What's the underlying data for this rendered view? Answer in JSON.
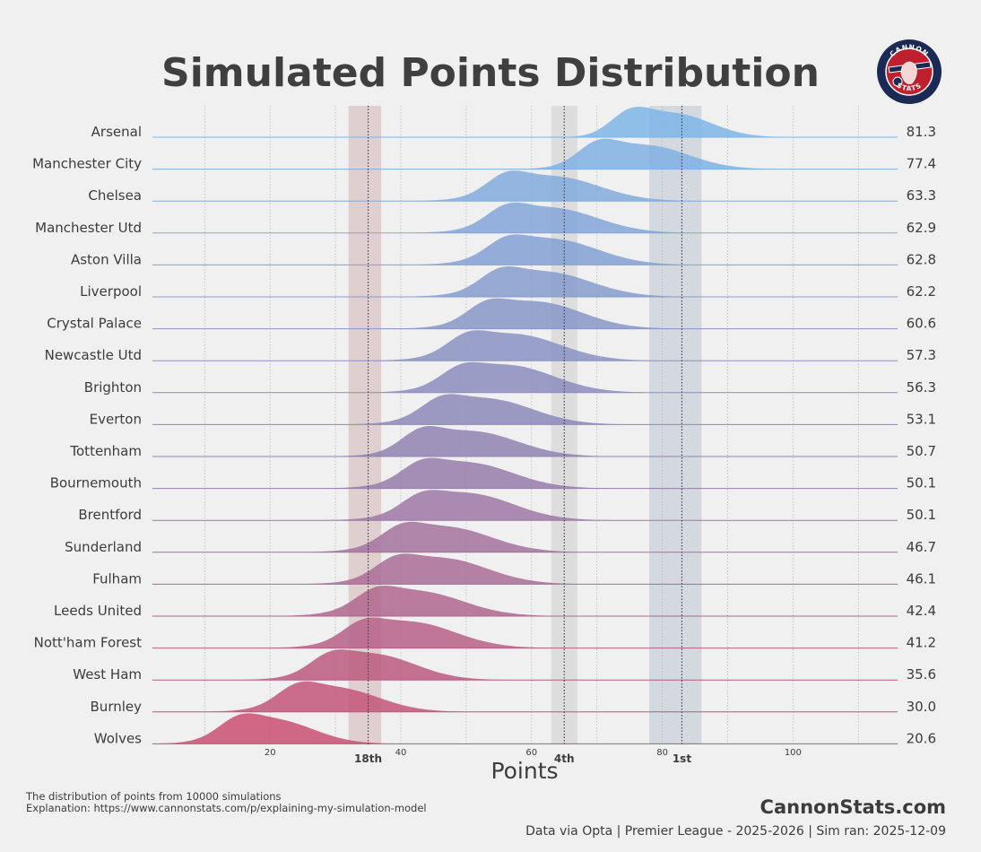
{
  "header": {
    "title": "Simulated Points Distribution"
  },
  "logo": {
    "top_text": "CANNON",
    "bottom_text": "STATS"
  },
  "footer": {
    "note_line1": "The distribution of points from 10000 simulations",
    "note_line2": "Explanation: https://www.cannonstats.com/p/explaining-my-simulation-model",
    "brand": "CannonStats.com",
    "source": "Data via Opta | Premier League - 2025-2026 | Sim ran: 2025-12-09"
  },
  "colors": {
    "background": "#f0f0f0",
    "top_color": "#7eb5e8",
    "mid_color": "#8d86b6",
    "bottom_color": "#c94f72",
    "title_color": "#3f3f3f",
    "band_18th": "#ddc9c9",
    "band_4th": "#d9d9d9",
    "band_1st": "#cfd3dc"
  },
  "chart_data": {
    "type": "ridgeline",
    "title": "Simulated Points Distribution",
    "xlabel": "Points",
    "xlim": [
      2,
      116
    ],
    "xticks": [
      20,
      40,
      60,
      80,
      100
    ],
    "reference_lines": [
      {
        "label": "18th",
        "value": 35,
        "band": [
          32,
          37
        ]
      },
      {
        "label": "4th",
        "value": 65,
        "band": [
          63,
          67
        ]
      },
      {
        "label": "1st",
        "value": 83,
        "band": [
          78,
          86
        ]
      }
    ],
    "series": [
      {
        "team": "Arsenal",
        "expected": "81.3",
        "mean": 82,
        "sd": 5.5,
        "bumps": [
          [
            75,
            0.8,
            3
          ]
        ]
      },
      {
        "team": "Manchester City",
        "expected": "77.4",
        "mean": 77.4,
        "sd": 6.5,
        "bumps": [
          [
            70,
            0.7,
            3
          ]
        ]
      },
      {
        "team": "Chelsea",
        "expected": "63.3",
        "mean": 63.3,
        "sd": 7,
        "bumps": [
          [
            56,
            0.6,
            3
          ]
        ]
      },
      {
        "team": "Manchester Utd",
        "expected": "62.9",
        "mean": 63,
        "sd": 7,
        "bumps": [
          [
            56,
            0.55,
            3
          ]
        ]
      },
      {
        "team": "Aston Villa",
        "expected": "62.8",
        "mean": 63,
        "sd": 7,
        "bumps": [
          [
            56,
            0.5,
            3
          ]
        ]
      },
      {
        "team": "Liverpool",
        "expected": "62.2",
        "mean": 62,
        "sd": 7,
        "bumps": [
          [
            55,
            0.55,
            3
          ]
        ]
      },
      {
        "team": "Crystal Palace",
        "expected": "60.6",
        "mean": 60.6,
        "sd": 7,
        "bumps": [
          [
            53,
            0.5,
            3
          ]
        ]
      },
      {
        "team": "Newcastle Utd",
        "expected": "57.3",
        "mean": 57.3,
        "sd": 7,
        "bumps": [
          [
            50,
            0.5,
            3
          ]
        ]
      },
      {
        "team": "Brighton",
        "expected": "56.3",
        "mean": 56.3,
        "sd": 7,
        "bumps": [
          [
            49,
            0.45,
            3
          ]
        ]
      },
      {
        "team": "Everton",
        "expected": "53.1",
        "mean": 53,
        "sd": 7,
        "bumps": [
          [
            46,
            0.5,
            3
          ]
        ]
      },
      {
        "team": "Tottenham",
        "expected": "50.7",
        "mean": 50.7,
        "sd": 7,
        "bumps": [
          [
            43,
            0.6,
            3
          ]
        ]
      },
      {
        "team": "Bournemouth",
        "expected": "50.1",
        "mean": 50,
        "sd": 7,
        "bumps": [
          [
            43,
            0.5,
            3
          ]
        ]
      },
      {
        "team": "Brentford",
        "expected": "50.1",
        "mean": 50.1,
        "sd": 7,
        "bumps": [
          [
            43,
            0.45,
            3
          ]
        ]
      },
      {
        "team": "Sunderland",
        "expected": "46.7",
        "mean": 46.7,
        "sd": 7,
        "bumps": [
          [
            40,
            0.5,
            3
          ]
        ]
      },
      {
        "team": "Fulham",
        "expected": "46.1",
        "mean": 46.1,
        "sd": 7,
        "bumps": [
          [
            39,
            0.5,
            3
          ]
        ]
      },
      {
        "team": "Leeds United",
        "expected": "42.4",
        "mean": 42.4,
        "sd": 7,
        "bumps": [
          [
            36,
            0.5,
            3
          ]
        ]
      },
      {
        "team": "Nott'ham Forest",
        "expected": "41.2",
        "mean": 41.2,
        "sd": 7,
        "bumps": [
          [
            34,
            0.5,
            3
          ]
        ]
      },
      {
        "team": "West Ham",
        "expected": "35.6",
        "mean": 35.6,
        "sd": 6.5,
        "bumps": [
          [
            29,
            0.5,
            3
          ]
        ]
      },
      {
        "team": "Burnley",
        "expected": "30.0",
        "mean": 30,
        "sd": 6.5,
        "bumps": [
          [
            24,
            0.55,
            3
          ]
        ]
      },
      {
        "team": "Wolves",
        "expected": "20.6",
        "mean": 20.6,
        "sd": 6,
        "bumps": [
          [
            15,
            0.55,
            3
          ]
        ]
      }
    ]
  }
}
